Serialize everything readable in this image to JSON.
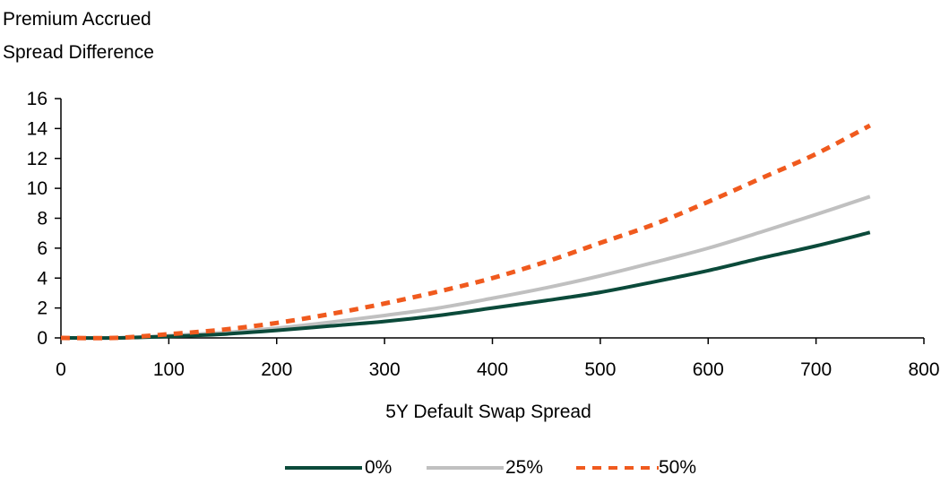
{
  "chart_data": {
    "type": "line",
    "ylabel_lines": [
      "Premium Accrued",
      "Spread Difference"
    ],
    "xlabel": "5Y Default Swap Spread",
    "xlim": [
      0,
      800
    ],
    "ylim": [
      0,
      16
    ],
    "xticks": [
      0,
      100,
      200,
      300,
      400,
      500,
      600,
      700,
      800
    ],
    "yticks": [
      0,
      2,
      4,
      6,
      8,
      10,
      12,
      14,
      16
    ],
    "grid": false,
    "legend_position": "bottom",
    "series": [
      {
        "name": "0%",
        "color": "#0b4a3a",
        "style": "solid",
        "x": [
          0,
          50,
          100,
          150,
          200,
          250,
          300,
          350,
          400,
          450,
          500,
          550,
          600,
          650,
          700,
          750
        ],
        "y": [
          0,
          0,
          0.1,
          0.25,
          0.5,
          0.8,
          1.1,
          1.5,
          2.0,
          2.5,
          3.05,
          3.75,
          4.5,
          5.35,
          6.15,
          7.05
        ]
      },
      {
        "name": "25%",
        "color": "#c0c0c0",
        "style": "solid",
        "x": [
          0,
          50,
          100,
          150,
          200,
          250,
          300,
          350,
          400,
          450,
          500,
          550,
          600,
          650,
          700,
          750
        ],
        "y": [
          0,
          0,
          0.15,
          0.35,
          0.65,
          1.05,
          1.5,
          2.0,
          2.65,
          3.35,
          4.15,
          5.05,
          6.0,
          7.1,
          8.25,
          9.45
        ]
      },
      {
        "name": "50%",
        "color": "#f05a1e",
        "style": "dashed",
        "x": [
          0,
          50,
          100,
          150,
          200,
          250,
          300,
          350,
          400,
          450,
          500,
          550,
          600,
          650,
          700,
          750
        ],
        "y": [
          0,
          0,
          0.25,
          0.55,
          1.0,
          1.6,
          2.3,
          3.1,
          4.0,
          5.1,
          6.35,
          7.6,
          9.1,
          10.7,
          12.3,
          14.2
        ]
      }
    ]
  }
}
